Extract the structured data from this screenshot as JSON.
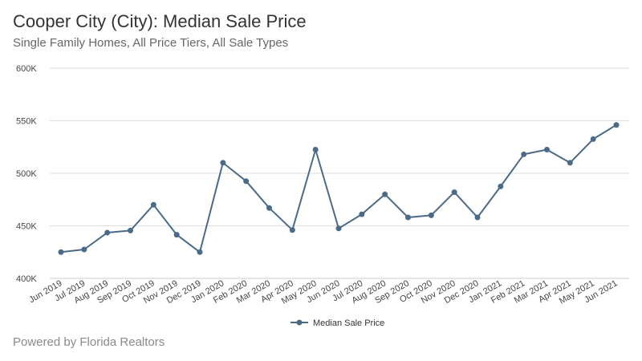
{
  "header": {
    "title": "Cooper City (City): Median Sale Price",
    "subtitle": "Single Family Homes, All Price Tiers, All Sale Types"
  },
  "footer": {
    "text": "Powered by Florida Realtors"
  },
  "colors": {
    "series": "#4a6a87",
    "grid": "#dddddd",
    "axis": "#cccccc"
  },
  "chart_data": {
    "type": "line",
    "categories": [
      "Jun 2019",
      "Jul 2019",
      "Aug 2019",
      "Sep 2019",
      "Oct 2019",
      "Nov 2019",
      "Dec 2019",
      "Jan 2020",
      "Feb 2020",
      "Mar 2020",
      "Apr 2020",
      "May 2020",
      "Jun 2020",
      "Jul 2020",
      "Aug 2020",
      "Sep 2020",
      "Oct 2020",
      "Nov 2020",
      "Dec 2020",
      "Jan 2021",
      "Feb 2021",
      "Mar 2021",
      "Apr 2021",
      "May 2021",
      "Jun 2021"
    ],
    "series": [
      {
        "name": "Median Sale Price",
        "values": [
          425000,
          427500,
          443500,
          445500,
          470000,
          441500,
          425000,
          510000,
          492500,
          467000,
          446000,
          522500,
          447500,
          461000,
          480000,
          458000,
          460000,
          482000,
          458000,
          487500,
          518000,
          522500,
          510000,
          532500,
          546000
        ]
      }
    ],
    "ylim": [
      400000,
      600000
    ],
    "yticks": [
      400000,
      450000,
      500000,
      550000,
      600000
    ],
    "ytick_labels": [
      "400K",
      "450K",
      "500K",
      "550K",
      "600K"
    ],
    "grid": true,
    "legend": "bottom"
  }
}
